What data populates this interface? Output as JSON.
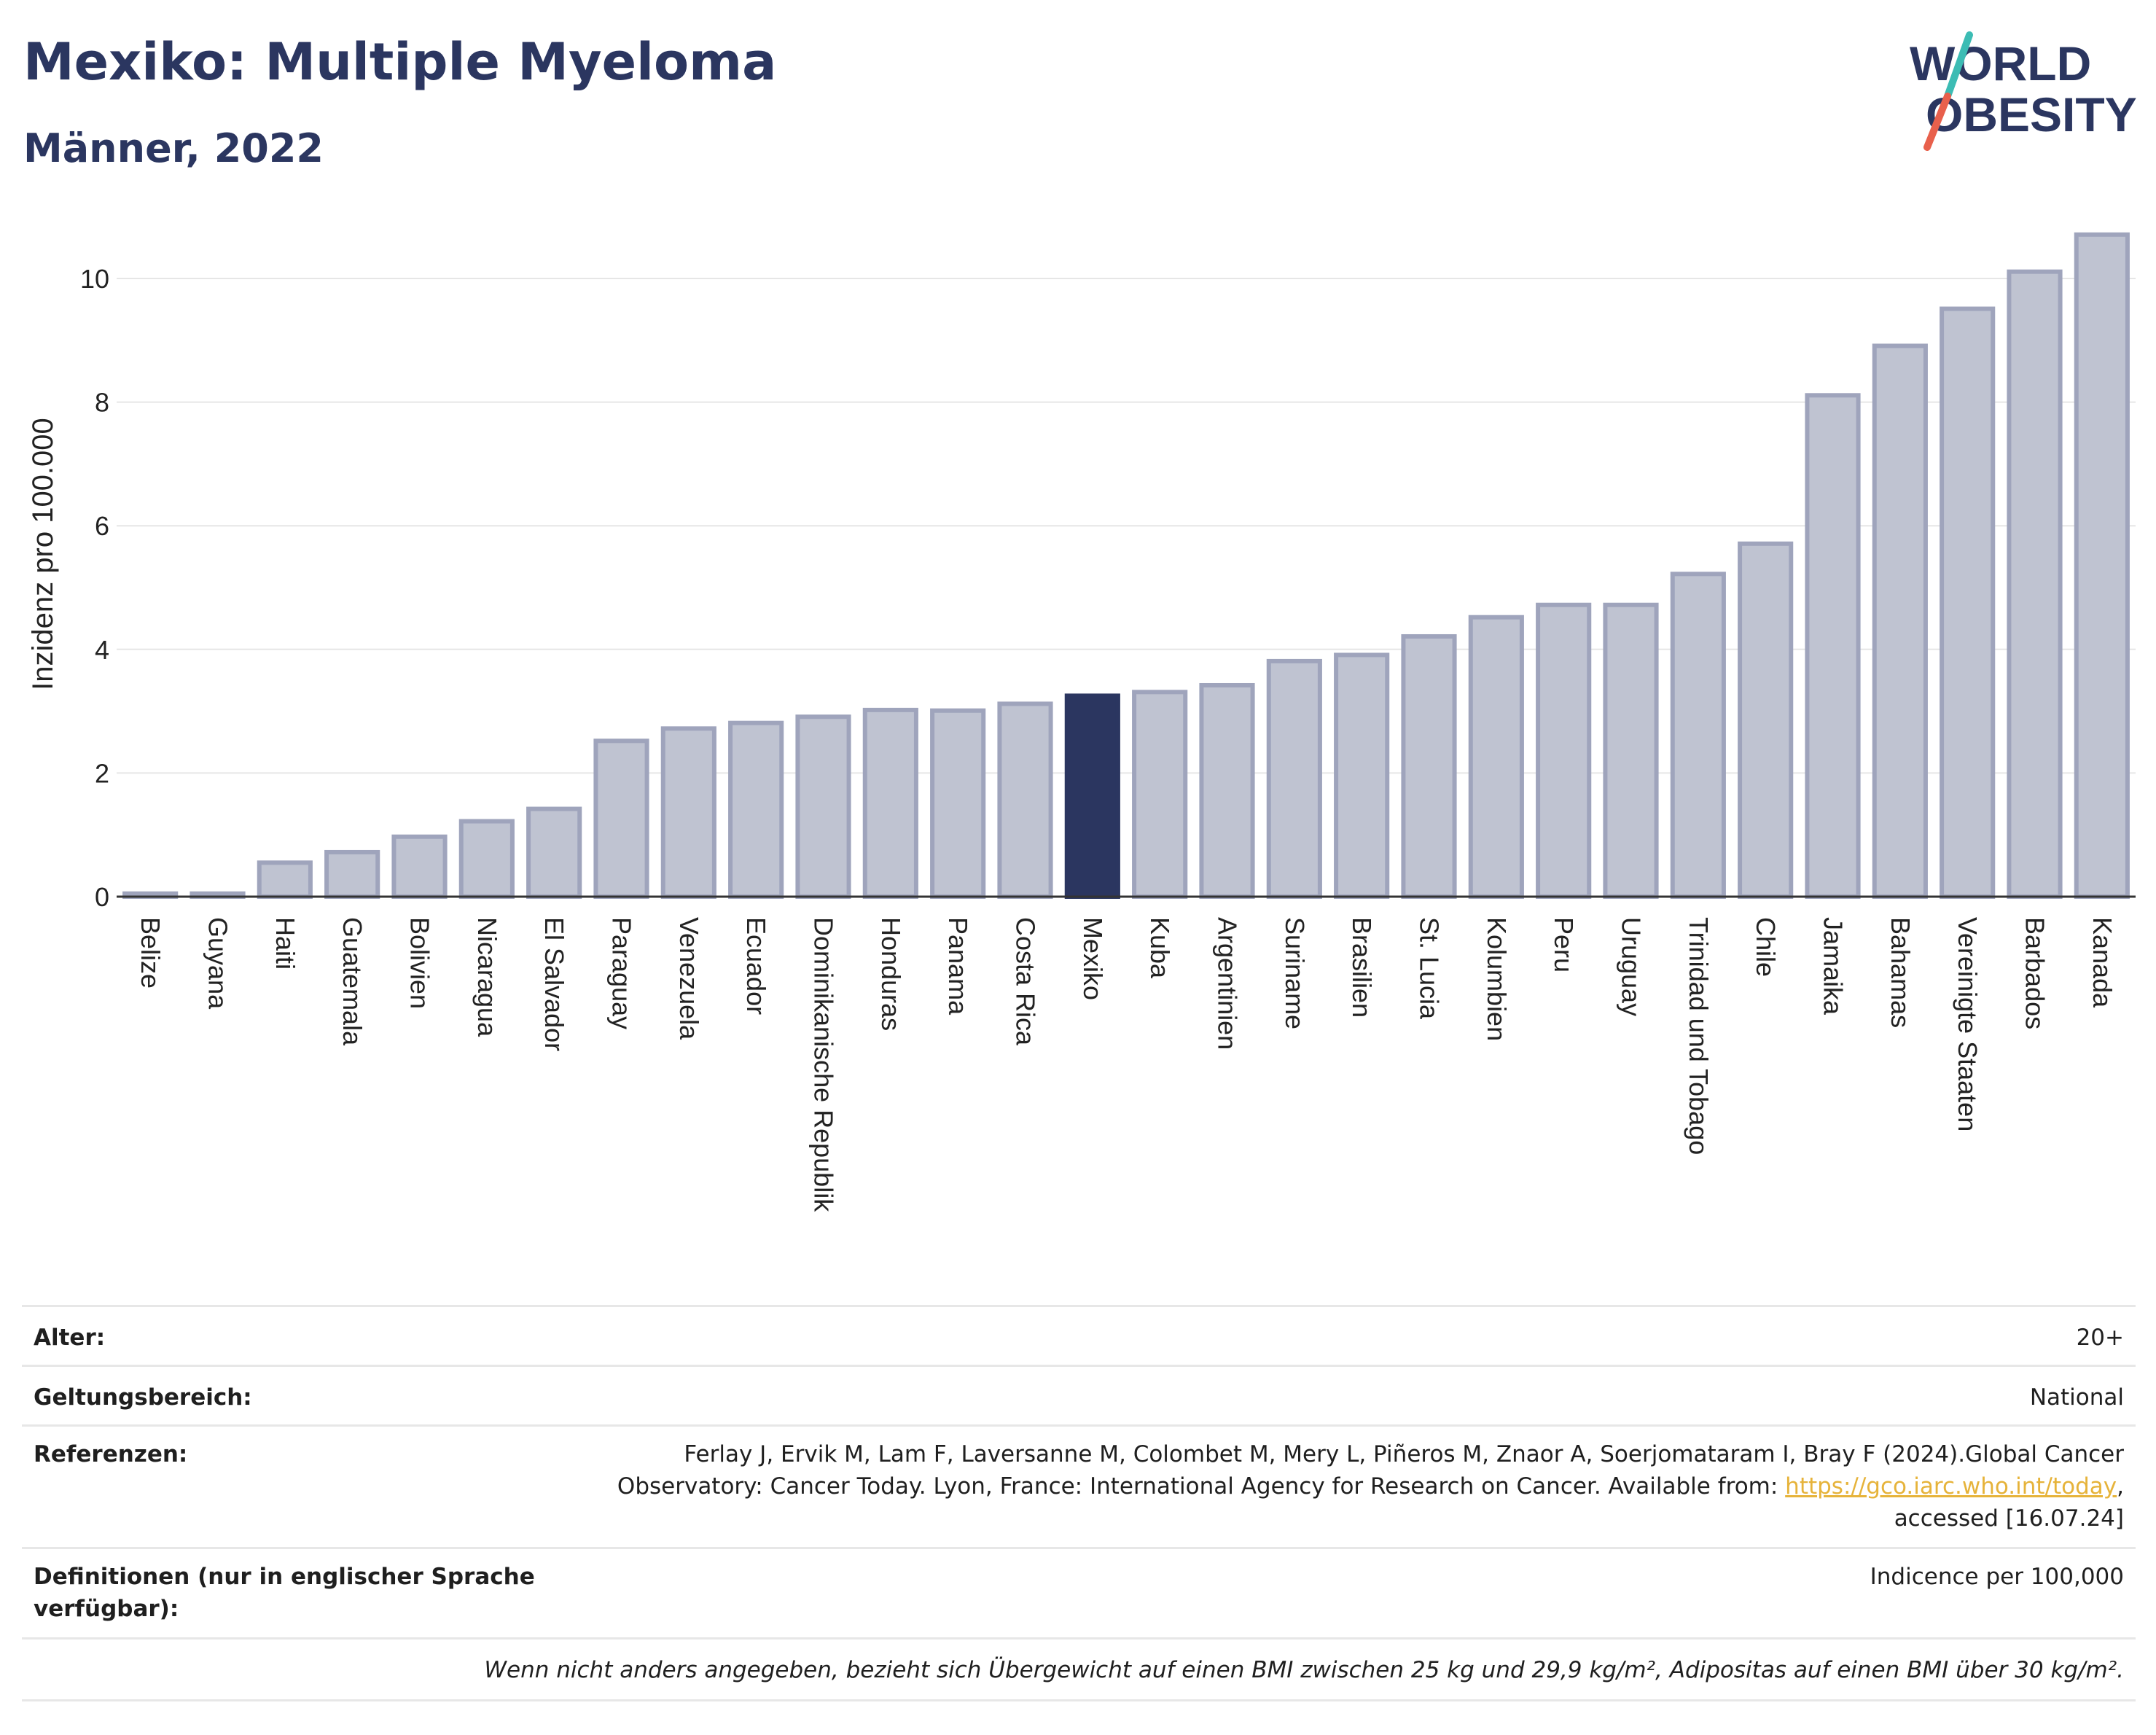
{
  "header": {
    "title": "Mexiko: Multiple Myeloma",
    "subtitle": "Männer, 2022"
  },
  "logo": {
    "line1": "WORLD",
    "line2": "OBESITY"
  },
  "colors": {
    "highlight": "#2b3660",
    "bar": "#bfc3d1",
    "bar_border": "#9fa4bc",
    "title": "#2b3660",
    "link": "#e6b33a"
  },
  "chart_data": {
    "type": "bar",
    "ylabel": "Inzidenz pro 100.000",
    "ylim": [
      0,
      11
    ],
    "yticks": [
      0,
      2,
      4,
      6,
      8,
      10
    ],
    "grid": true,
    "highlight": "Mexiko",
    "categories": [
      "Belize",
      "Guyana",
      "Haiti",
      "Guatemala",
      "Bolivien",
      "Nicaragua",
      "El Salvador",
      "Paraguay",
      "Venezuela",
      "Ecuador",
      "Dominikanische Republik",
      "Honduras",
      "Panama",
      "Costa Rica",
      "Mexiko",
      "Kuba",
      "Argentinien",
      "Suriname",
      "Brasilien",
      "St. Lucia",
      "Kolumbien",
      "Peru",
      "Uruguay",
      "Trinidad und Tobago",
      "Chile",
      "Jamaika",
      "Bahamas",
      "Vereinigte Staaten",
      "Barbados",
      "Kanada"
    ],
    "values": [
      0.05,
      0.05,
      0.55,
      0.72,
      0.97,
      1.22,
      1.42,
      2.52,
      2.72,
      2.81,
      2.91,
      3.02,
      3.01,
      3.12,
      3.25,
      3.31,
      3.42,
      3.81,
      3.91,
      4.21,
      4.52,
      4.72,
      4.72,
      5.22,
      5.71,
      8.11,
      8.91,
      9.51,
      10.11,
      10.71
    ]
  },
  "meta": {
    "age_label": "Alter:",
    "age_value": "20+",
    "scope_label": "Geltungsbereich:",
    "scope_value": "National",
    "refs_label": "Referenzen:",
    "refs_line1": "Ferlay J, Ervik M, Lam F, Laversanne M, Colombet M, Mery L, Piñeros M, Znaor A, Soerjomataram I, Bray F (2024).Global Cancer",
    "refs_line2": "Observatory: Cancer Today. Lyon, France: International Agency for Research on Cancer. Available from: ",
    "refs_link": "https://gco.iarc.who.int/today",
    "refs_line2_end": ",",
    "refs_line3": "accessed [16.07.24]",
    "defs_label_1": "Definitionen (nur in englischer Sprache",
    "defs_label_2": "verfügbar):",
    "defs_value": "Indicence per 100,000",
    "note": "Wenn nicht anders angegeben, bezieht sich Übergewicht auf einen BMI zwischen 25 kg und 29,9 kg/m², Adipositas auf einen BMI über 30 kg/m²."
  }
}
